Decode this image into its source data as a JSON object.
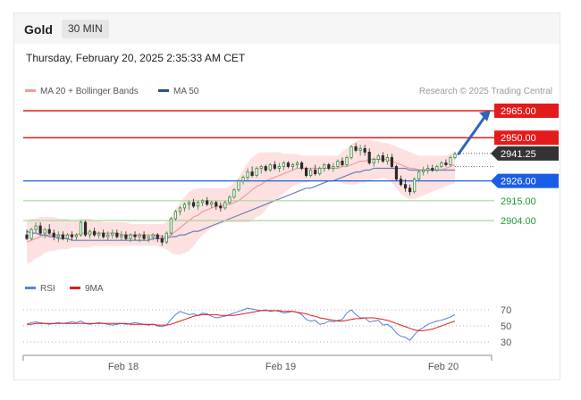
{
  "header": {
    "instrument": "Gold",
    "interval": "30 MIN",
    "timestamp": "Thursday, February 20, 2025 2:35:33 AM CET"
  },
  "chart_data": [
    {
      "type": "line",
      "title": "",
      "legend": [
        {
          "name": "MA 20 + Bollinger Bands",
          "color": "#f29a9a"
        },
        {
          "name": "MA 50",
          "color": "#2c4f8c"
        }
      ],
      "legend_placement": "top-left",
      "credit": "Research © 2025 Trading Central",
      "price_range": [
        2875,
        2975
      ],
      "levels": [
        {
          "value": 2965.0,
          "label": "2965.00",
          "kind": "resistance",
          "color": "#e31b1b"
        },
        {
          "value": 2950.0,
          "label": "2950.00",
          "kind": "resistance",
          "color": "#e31b1b"
        },
        {
          "value": 2941.25,
          "label": "2941.25",
          "kind": "last-price",
          "color": "#333333"
        },
        {
          "value": 2926.0,
          "label": "2926.00",
          "kind": "pivot",
          "color": "#1a5ee8"
        },
        {
          "value": 2915.0,
          "label": "2915.00",
          "kind": "support",
          "color": "#1f9c2f"
        },
        {
          "value": 2904.0,
          "label": "2904.00",
          "kind": "support",
          "color": "#1f9c2f"
        }
      ],
      "target": 2965.0,
      "candles": [
        [
          2896,
          2899,
          2893,
          2894
        ],
        [
          2894,
          2900,
          2893,
          2899
        ],
        [
          2899,
          2903,
          2897,
          2901
        ],
        [
          2901,
          2903,
          2896,
          2897
        ],
        [
          2897,
          2900,
          2894,
          2899
        ],
        [
          2899,
          2902,
          2896,
          2897
        ],
        [
          2897,
          2899,
          2893,
          2895
        ],
        [
          2895,
          2898,
          2892,
          2896
        ],
        [
          2896,
          2898,
          2893,
          2894
        ],
        [
          2894,
          2897,
          2892,
          2896
        ],
        [
          2896,
          2898,
          2893,
          2895
        ],
        [
          2895,
          2897,
          2893,
          2896
        ],
        [
          2896,
          2904,
          2895,
          2903
        ],
        [
          2903,
          2904,
          2895,
          2896
        ],
        [
          2896,
          2899,
          2894,
          2898
        ],
        [
          2898,
          2900,
          2895,
          2896
        ],
        [
          2896,
          2898,
          2894,
          2897
        ],
        [
          2897,
          2899,
          2894,
          2895
        ],
        [
          2895,
          2898,
          2893,
          2896
        ],
        [
          2896,
          2899,
          2894,
          2897
        ],
        [
          2897,
          2899,
          2894,
          2895
        ],
        [
          2895,
          2898,
          2893,
          2896
        ],
        [
          2896,
          2898,
          2893,
          2894
        ],
        [
          2894,
          2897,
          2892,
          2896
        ],
        [
          2896,
          2898,
          2893,
          2895
        ],
        [
          2895,
          2897,
          2892,
          2896
        ],
        [
          2896,
          2898,
          2893,
          2894
        ],
        [
          2894,
          2896,
          2892,
          2895
        ],
        [
          2895,
          2897,
          2893,
          2896
        ],
        [
          2896,
          2897,
          2892,
          2894
        ],
        [
          2894,
          2896,
          2890,
          2892
        ],
        [
          2892,
          2898,
          2891,
          2897
        ],
        [
          2897,
          2906,
          2896,
          2905
        ],
        [
          2905,
          2910,
          2904,
          2909
        ],
        [
          2909,
          2912,
          2907,
          2911
        ],
        [
          2911,
          2914,
          2909,
          2913
        ],
        [
          2913,
          2915,
          2910,
          2914
        ],
        [
          2914,
          2916,
          2911,
          2912
        ],
        [
          2912,
          2915,
          2910,
          2914
        ],
        [
          2914,
          2916,
          2912,
          2915
        ],
        [
          2915,
          2917,
          2912,
          2913
        ],
        [
          2913,
          2915,
          2911,
          2914
        ],
        [
          2914,
          2915,
          2910,
          2912
        ],
        [
          2912,
          2914,
          2909,
          2911
        ],
        [
          2911,
          2915,
          2910,
          2914
        ],
        [
          2914,
          2918,
          2913,
          2917
        ],
        [
          2917,
          2922,
          2916,
          2921
        ],
        [
          2921,
          2927,
          2920,
          2926
        ],
        [
          2926,
          2929,
          2924,
          2928
        ],
        [
          2928,
          2933,
          2926,
          2931
        ],
        [
          2931,
          2934,
          2928,
          2929
        ],
        [
          2929,
          2934,
          2928,
          2933
        ],
        [
          2933,
          2935,
          2930,
          2934
        ],
        [
          2934,
          2935,
          2931,
          2932
        ],
        [
          2932,
          2936,
          2931,
          2935
        ],
        [
          2935,
          2937,
          2932,
          2933
        ],
        [
          2933,
          2936,
          2931,
          2934
        ],
        [
          2934,
          2937,
          2932,
          2936
        ],
        [
          2936,
          2937,
          2933,
          2934
        ],
        [
          2934,
          2936,
          2932,
          2935
        ],
        [
          2935,
          2937,
          2933,
          2936
        ],
        [
          2936,
          2937,
          2932,
          2933
        ],
        [
          2933,
          2934,
          2928,
          2929
        ],
        [
          2929,
          2933,
          2928,
          2932
        ],
        [
          2932,
          2935,
          2929,
          2930
        ],
        [
          2930,
          2934,
          2929,
          2933
        ],
        [
          2933,
          2936,
          2931,
          2935
        ],
        [
          2935,
          2936,
          2932,
          2933
        ],
        [
          2933,
          2936,
          2931,
          2934
        ],
        [
          2934,
          2938,
          2933,
          2937
        ],
        [
          2937,
          2939,
          2934,
          2935
        ],
        [
          2935,
          2940,
          2934,
          2939
        ],
        [
          2939,
          2946,
          2938,
          2945
        ],
        [
          2945,
          2947,
          2942,
          2943
        ],
        [
          2943,
          2946,
          2940,
          2944
        ],
        [
          2944,
          2946,
          2940,
          2942
        ],
        [
          2942,
          2944,
          2935,
          2936
        ],
        [
          2936,
          2939,
          2934,
          2938
        ],
        [
          2938,
          2941,
          2936,
          2940
        ],
        [
          2940,
          2942,
          2936,
          2937
        ],
        [
          2937,
          2941,
          2935,
          2939
        ],
        [
          2939,
          2941,
          2933,
          2934
        ],
        [
          2934,
          2935,
          2926,
          2927
        ],
        [
          2927,
          2929,
          2923,
          2924
        ],
        [
          2924,
          2927,
          2920,
          2922
        ],
        [
          2922,
          2924,
          2918,
          2920
        ],
        [
          2920,
          2928,
          2919,
          2927
        ],
        [
          2927,
          2932,
          2926,
          2931
        ],
        [
          2931,
          2934,
          2929,
          2932
        ],
        [
          2932,
          2935,
          2930,
          2933
        ],
        [
          2933,
          2935,
          2931,
          2932
        ],
        [
          2932,
          2935,
          2931,
          2934
        ],
        [
          2934,
          2937,
          2933,
          2936
        ],
        [
          2936,
          2938,
          2934,
          2935
        ],
        [
          2935,
          2940,
          2934,
          2939
        ],
        [
          2939,
          2942,
          2938,
          2941
        ]
      ],
      "ma20": [
        2892,
        2893,
        2894,
        2895,
        2896,
        2896,
        2896,
        2896,
        2896,
        2896,
        2896,
        2896,
        2897,
        2897,
        2897,
        2897,
        2897,
        2897,
        2897,
        2897,
        2897,
        2896,
        2896,
        2896,
        2896,
        2896,
        2896,
        2896,
        2896,
        2896,
        2895,
        2895,
        2896,
        2898,
        2900,
        2902,
        2904,
        2906,
        2907,
        2909,
        2910,
        2911,
        2912,
        2912,
        2913,
        2913,
        2914,
        2915,
        2917,
        2919,
        2921,
        2923,
        2924,
        2926,
        2927,
        2928,
        2929,
        2930,
        2931,
        2932,
        2933,
        2933,
        2933,
        2933,
        2933,
        2933,
        2933,
        2933,
        2933,
        2933,
        2934,
        2934,
        2935,
        2936,
        2937,
        2937,
        2938,
        2938,
        2938,
        2938,
        2938,
        2937,
        2936,
        2935,
        2934,
        2933,
        2933,
        2932,
        2932,
        2932,
        2932,
        2932,
        2932,
        2933,
        2934,
        2935
      ],
      "ma50": [
        2898,
        2897,
        2897,
        2896,
        2896,
        2895,
        2895,
        2894,
        2894,
        2894,
        2893,
        2893,
        2893,
        2893,
        2893,
        2893,
        2893,
        2893,
        2893,
        2893,
        2893,
        2893,
        2893,
        2893,
        2893,
        2893,
        2893,
        2893,
        2894,
        2894,
        2894,
        2894,
        2895,
        2895,
        2896,
        2896,
        2897,
        2898,
        2898,
        2899,
        2900,
        2901,
        2902,
        2903,
        2904,
        2905,
        2906,
        2907,
        2908,
        2909,
        2910,
        2911,
        2912,
        2913,
        2914,
        2915,
        2916,
        2917,
        2918,
        2919,
        2920,
        2921,
        2922,
        2922,
        2923,
        2924,
        2925,
        2926,
        2926,
        2927,
        2928,
        2929,
        2930,
        2931,
        2931,
        2932,
        2932,
        2933,
        2933,
        2933,
        2933,
        2933,
        2933,
        2933,
        2933,
        2932,
        2932,
        2932,
        2932,
        2932,
        2932,
        2932,
        2932,
        2932,
        2932,
        2932
      ],
      "boll_upper": [
        2904,
        2905,
        2905,
        2906,
        2906,
        2906,
        2906,
        2905,
        2905,
        2905,
        2904,
        2904,
        2905,
        2905,
        2905,
        2904,
        2904,
        2903,
        2903,
        2903,
        2903,
        2903,
        2903,
        2902,
        2902,
        2902,
        2902,
        2902,
        2902,
        2902,
        2902,
        2903,
        2906,
        2910,
        2914,
        2917,
        2920,
        2921,
        2922,
        2922,
        2922,
        2922,
        2922,
        2922,
        2922,
        2923,
        2925,
        2928,
        2932,
        2936,
        2939,
        2941,
        2942,
        2942,
        2942,
        2942,
        2942,
        2941,
        2941,
        2941,
        2941,
        2940,
        2940,
        2940,
        2940,
        2940,
        2940,
        2940,
        2940,
        2940,
        2942,
        2944,
        2946,
        2948,
        2949,
        2949,
        2949,
        2948,
        2948,
        2947,
        2947,
        2946,
        2945,
        2944,
        2943,
        2942,
        2941,
        2940,
        2940,
        2940,
        2940,
        2940,
        2940,
        2940,
        2941,
        2943
      ],
      "boll_lower": [
        2880,
        2881,
        2883,
        2884,
        2886,
        2887,
        2887,
        2888,
        2888,
        2888,
        2889,
        2889,
        2889,
        2889,
        2889,
        2890,
        2890,
        2890,
        2890,
        2890,
        2890,
        2890,
        2890,
        2890,
        2890,
        2890,
        2890,
        2890,
        2890,
        2890,
        2889,
        2888,
        2886,
        2885,
        2885,
        2886,
        2887,
        2890,
        2893,
        2896,
        2898,
        2900,
        2901,
        2902,
        2903,
        2903,
        2903,
        2903,
        2903,
        2903,
        2904,
        2906,
        2907,
        2910,
        2913,
        2915,
        2917,
        2919,
        2921,
        2923,
        2924,
        2925,
        2925,
        2926,
        2926,
        2926,
        2926,
        2926,
        2926,
        2926,
        2925,
        2924,
        2924,
        2924,
        2925,
        2925,
        2926,
        2927,
        2927,
        2928,
        2927,
        2925,
        2922,
        2919,
        2917,
        2916,
        2916,
        2917,
        2918,
        2919,
        2920,
        2921,
        2922,
        2923,
        2924,
        2925
      ]
    },
    {
      "type": "line",
      "title": "",
      "legend": [
        {
          "name": "RSI",
          "color": "#5a7fd6"
        },
        {
          "name": "9MA",
          "color": "#e31b1b"
        }
      ],
      "legend_placement": "top-left",
      "ylim": [
        20,
        80
      ],
      "levels": [
        {
          "value": 70,
          "label": "70"
        },
        {
          "value": 50,
          "label": "50"
        },
        {
          "value": 30,
          "label": "30"
        }
      ],
      "rsi": [
        52,
        54,
        55,
        54,
        53,
        52,
        53,
        54,
        53,
        54,
        55,
        54,
        56,
        53,
        52,
        53,
        54,
        53,
        52,
        51,
        52,
        53,
        52,
        53,
        54,
        53,
        52,
        51,
        52,
        50,
        49,
        51,
        58,
        64,
        68,
        66,
        64,
        65,
        63,
        66,
        65,
        62,
        60,
        61,
        62,
        64,
        66,
        68,
        70,
        72,
        71,
        70,
        69,
        70,
        68,
        69,
        68,
        66,
        67,
        68,
        67,
        64,
        58,
        56,
        57,
        52,
        53,
        56,
        55,
        57,
        58,
        66,
        70,
        64,
        60,
        60,
        55,
        56,
        57,
        51,
        52,
        48,
        41,
        37,
        36,
        32,
        39,
        45,
        48,
        52,
        54,
        56,
        57,
        59,
        61,
        64
      ],
      "ma9": [
        52,
        52,
        53,
        53,
        53,
        53,
        53,
        53,
        53,
        53,
        53,
        53,
        53,
        53,
        53,
        53,
        53,
        53,
        53,
        53,
        53,
        53,
        53,
        52,
        52,
        52,
        52,
        52,
        52,
        51,
        51,
        51,
        52,
        54,
        56,
        58,
        60,
        62,
        63,
        64,
        64,
        64,
        64,
        63,
        63,
        63,
        63,
        64,
        65,
        66,
        67,
        68,
        69,
        69,
        69,
        69,
        69,
        68,
        68,
        68,
        67,
        66,
        65,
        63,
        62,
        60,
        59,
        58,
        57,
        56,
        56,
        57,
        58,
        59,
        59,
        60,
        60,
        60,
        59,
        58,
        57,
        55,
        53,
        51,
        49,
        47,
        45,
        44,
        44,
        45,
        46,
        48,
        50,
        52,
        54,
        56
      ]
    }
  ],
  "x_axis": {
    "labels": [
      "Feb 18",
      "Feb 19",
      "Feb 20"
    ]
  }
}
